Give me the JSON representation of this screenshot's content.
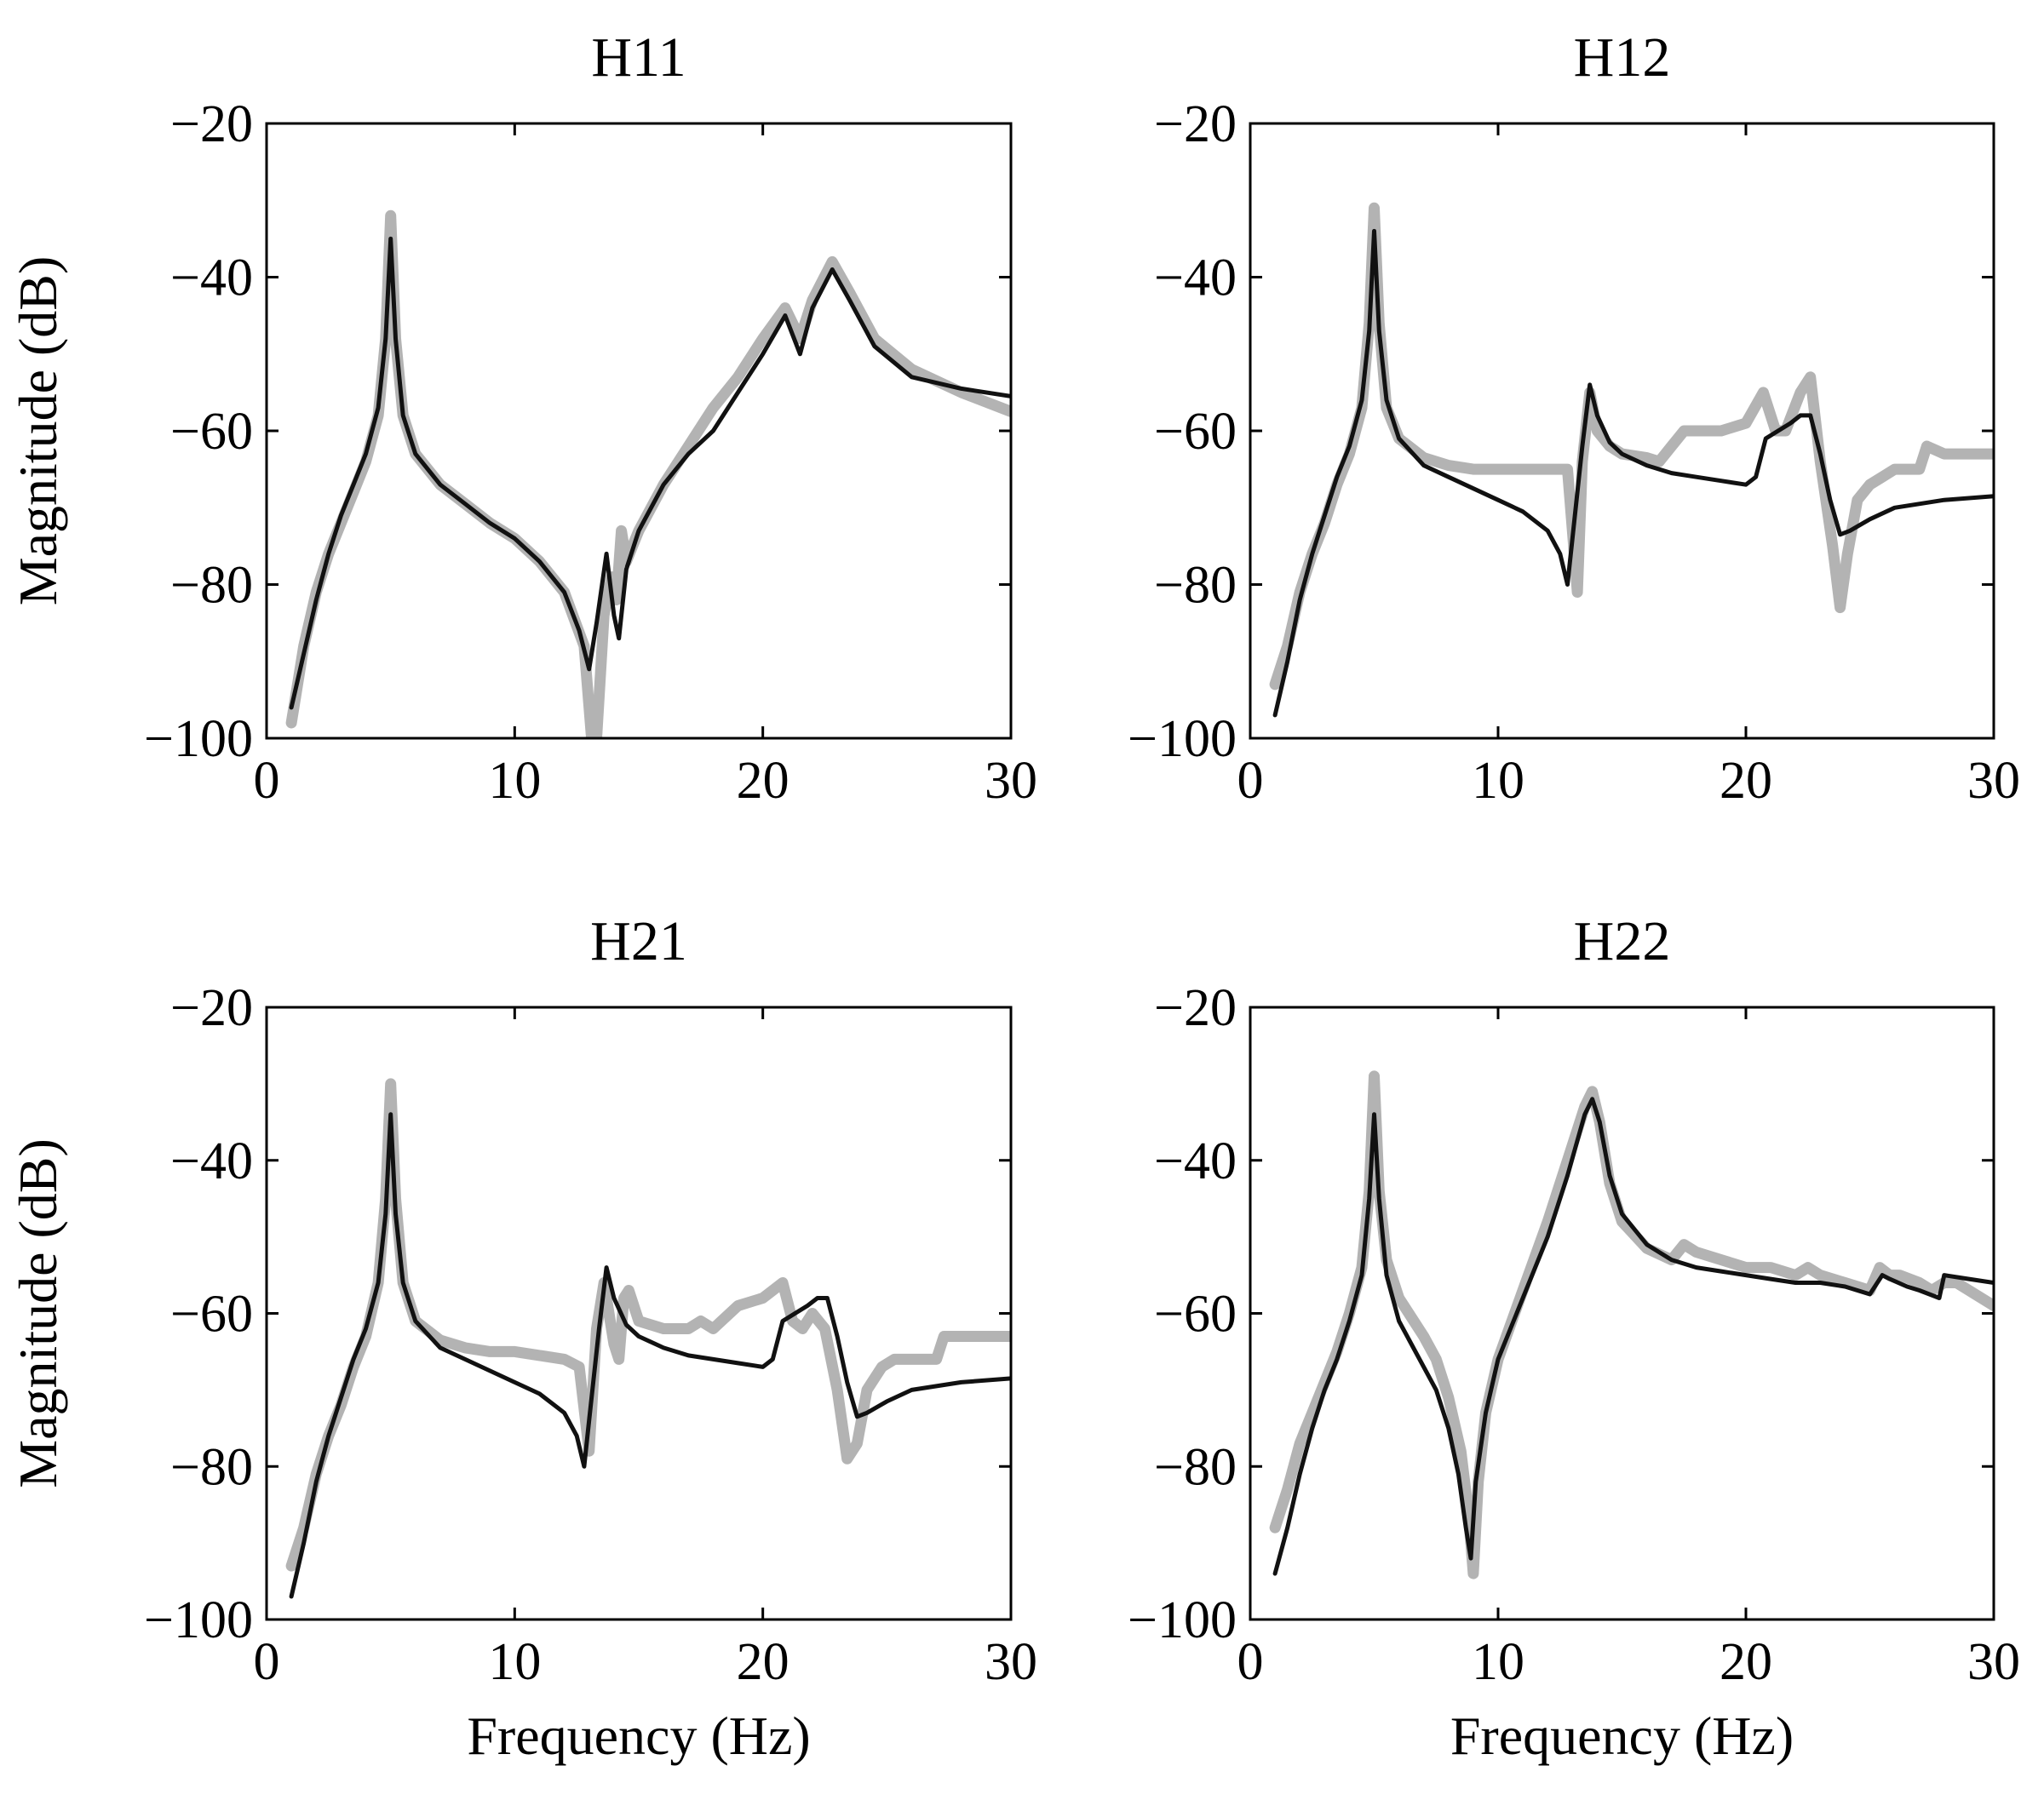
{
  "colors": {
    "measured": "#b3b3b3",
    "model": "#111111",
    "axes": "#000000",
    "background": "#ffffff"
  },
  "chart_data": [
    {
      "type": "line",
      "title": "H11",
      "xlabel": "",
      "ylabel": "Magnitude (dB)",
      "xlim": [
        0,
        30
      ],
      "ylim": [
        -100,
        -20
      ],
      "xticks": [
        0,
        10,
        20,
        30
      ],
      "yticks": [
        -100,
        -80,
        -60,
        -40,
        -20
      ],
      "xtick_labels": [
        "0",
        "10",
        "20",
        "30"
      ],
      "ytick_labels": [
        "−100",
        "−80",
        "−60",
        "−40",
        "−20"
      ],
      "grid": false,
      "series": [
        {
          "color": "#b3b3b3",
          "x": [
            1,
            1.5,
            2,
            2.5,
            3,
            3.5,
            4,
            4.5,
            4.8,
            5,
            5.2,
            5.5,
            6,
            7,
            8,
            9,
            10,
            11,
            12,
            12.8,
            13.1,
            13.3,
            13.6,
            13.9,
            14.1,
            14.3,
            14.5,
            15,
            16,
            17,
            18,
            19,
            20,
            20.9,
            21.5,
            22,
            22.8,
            23.5,
            24.5,
            26,
            28,
            30
          ],
          "y": [
            -98,
            -88,
            -81,
            -76,
            -72,
            -68,
            -64,
            -58,
            -48,
            -32,
            -48,
            -58,
            -63,
            -67,
            -69.5,
            -72,
            -74,
            -77,
            -81,
            -88,
            -100,
            -100,
            -84,
            -79,
            -82,
            -73,
            -77,
            -73,
            -67,
            -62,
            -57,
            -53,
            -48,
            -44,
            -48,
            -43,
            -38,
            -42,
            -48,
            -52,
            -55,
            -57.5
          ]
        },
        {
          "color": "#111111",
          "x": [
            1,
            1.5,
            2,
            2.5,
            3,
            3.5,
            4,
            4.5,
            4.8,
            5,
            5.2,
            5.5,
            6,
            7,
            8,
            9,
            10,
            11,
            12,
            12.6,
            13,
            13.3,
            13.7,
            14,
            14.2,
            14.5,
            15,
            16,
            17,
            18,
            19,
            20,
            20.9,
            21.5,
            22,
            22.8,
            23.5,
            24.5,
            26,
            28,
            30
          ],
          "y": [
            -96,
            -89,
            -82,
            -76,
            -71,
            -67,
            -63,
            -57,
            -48,
            -35,
            -48,
            -58,
            -63,
            -67,
            -69.5,
            -72,
            -74,
            -77,
            -81,
            -86,
            -91,
            -85,
            -76,
            -84,
            -87,
            -78,
            -73,
            -67,
            -63,
            -60,
            -55,
            -50,
            -45,
            -50,
            -44,
            -39,
            -43,
            -49,
            -53,
            -54.5,
            -55.5
          ]
        }
      ]
    },
    {
      "type": "line",
      "title": "H12",
      "xlabel": "",
      "ylabel": "",
      "xlim": [
        0,
        30
      ],
      "ylim": [
        -100,
        -20
      ],
      "xticks": [
        0,
        10,
        20,
        30
      ],
      "yticks": [
        -100,
        -80,
        -60,
        -40,
        -20
      ],
      "xtick_labels": [
        "0",
        "10",
        "20",
        "30"
      ],
      "ytick_labels": [
        "−100",
        "−80",
        "−60",
        "−40",
        "−20"
      ],
      "grid": false,
      "series": [
        {
          "color": "#b3b3b3",
          "x": [
            1,
            1.5,
            2,
            2.5,
            3,
            3.5,
            4,
            4.5,
            4.8,
            5,
            5.2,
            5.5,
            6,
            7,
            8,
            9,
            10,
            11,
            12,
            12.8,
            13.2,
            13.4,
            13.7,
            14,
            14.5,
            15,
            16,
            16.5,
            17,
            17.5,
            19,
            20,
            20.7,
            21.2,
            21.6,
            22.2,
            22.6,
            23,
            23.5,
            23.8,
            24.1,
            24.5,
            25,
            25.5,
            26,
            27,
            27.3,
            28,
            30
          ],
          "y": [
            -93,
            -88,
            -81,
            -76,
            -72,
            -67,
            -63,
            -57,
            -46,
            -31,
            -46,
            -57,
            -61,
            -63.5,
            -64.5,
            -65,
            -65,
            -65,
            -65,
            -65,
            -81,
            -64,
            -55,
            -60,
            -62,
            -63,
            -63.5,
            -64,
            -62,
            -60,
            -60,
            -59,
            -55,
            -60,
            -60,
            -55,
            -53,
            -64,
            -75,
            -83,
            -76,
            -69,
            -67,
            -66,
            -65,
            -65,
            -62,
            -63,
            -63
          ]
        },
        {
          "color": "#111111",
          "x": [
            1,
            1.5,
            2,
            2.5,
            3,
            3.5,
            4,
            4.5,
            4.8,
            5,
            5.2,
            5.5,
            6,
            7,
            8,
            9,
            10,
            11,
            12,
            12.5,
            12.8,
            13,
            13.4,
            13.7,
            14,
            14.5,
            15,
            16,
            17,
            18,
            19,
            20,
            20.4,
            20.8,
            21.3,
            21.8,
            22.2,
            22.6,
            23,
            23.4,
            23.8,
            24.2,
            25,
            26,
            28,
            30
          ],
          "y": [
            -97,
            -90,
            -82,
            -76,
            -71,
            -66,
            -62,
            -56,
            -47,
            -34,
            -47,
            -56,
            -61,
            -64.5,
            -66,
            -67.5,
            -69,
            -70.5,
            -73,
            -76,
            -80,
            -74,
            -62,
            -54,
            -58,
            -61.5,
            -63,
            -64.5,
            -65.5,
            -66,
            -66.5,
            -67,
            -66,
            -61,
            -60,
            -59,
            -58,
            -58,
            -63,
            -69,
            -73.5,
            -73,
            -71.5,
            -70,
            -69,
            -68.5
          ]
        }
      ]
    },
    {
      "type": "line",
      "title": "H21",
      "xlabel": "Frequency (Hz)",
      "ylabel": "Magnitude (dB)",
      "xlim": [
        0,
        30
      ],
      "ylim": [
        -100,
        -20
      ],
      "xticks": [
        0,
        10,
        20,
        30
      ],
      "yticks": [
        -100,
        -80,
        -60,
        -40,
        -20
      ],
      "xtick_labels": [
        "0",
        "10",
        "20",
        "30"
      ],
      "ytick_labels": [
        "−100",
        "−80",
        "−60",
        "−40",
        "−20"
      ],
      "grid": false,
      "series": [
        {
          "color": "#b3b3b3",
          "x": [
            1,
            1.5,
            2,
            2.5,
            3,
            3.5,
            4,
            4.5,
            4.8,
            5,
            5.2,
            5.5,
            6,
            7,
            8,
            9,
            10,
            11,
            12,
            12.6,
            13,
            13.3,
            13.6,
            14,
            14.2,
            14.4,
            14.6,
            15,
            16,
            17,
            17.5,
            18,
            19,
            20,
            20.8,
            21.2,
            21.6,
            22,
            22.5,
            23,
            23.4,
            23.8,
            24.2,
            24.8,
            25.3,
            26,
            27,
            27.3,
            28,
            30
          ],
          "y": [
            -93,
            -88,
            -81,
            -76,
            -72,
            -67,
            -63,
            -56,
            -45,
            -30,
            -45,
            -56,
            -61,
            -63.5,
            -64.5,
            -65,
            -65,
            -65.5,
            -66,
            -67,
            -78,
            -62,
            -56,
            -64,
            -66,
            -58,
            -57,
            -61,
            -62,
            -62,
            -61,
            -62,
            -59,
            -58,
            -56,
            -61,
            -62,
            -60,
            -62,
            -70,
            -79,
            -77,
            -70,
            -67,
            -66,
            -66,
            -66,
            -63,
            -63,
            -63
          ]
        },
        {
          "color": "#111111",
          "x": [
            1,
            1.5,
            2,
            2.5,
            3,
            3.5,
            4,
            4.5,
            4.8,
            5,
            5.2,
            5.5,
            6,
            7,
            8,
            9,
            10,
            11,
            12,
            12.5,
            12.8,
            13,
            13.4,
            13.7,
            14,
            14.5,
            15,
            16,
            17,
            18,
            19,
            20,
            20.4,
            20.8,
            21.3,
            21.8,
            22.2,
            22.6,
            23,
            23.4,
            23.8,
            24.2,
            25,
            26,
            28,
            30
          ],
          "y": [
            -97,
            -90,
            -82,
            -76,
            -71,
            -66,
            -62,
            -56,
            -47,
            -34,
            -47,
            -56,
            -61,
            -64.5,
            -66,
            -67.5,
            -69,
            -70.5,
            -73,
            -76,
            -80,
            -74,
            -62,
            -54,
            -58,
            -61.5,
            -63,
            -64.5,
            -65.5,
            -66,
            -66.5,
            -67,
            -66,
            -61,
            -60,
            -59,
            -58,
            -58,
            -63,
            -69,
            -73.5,
            -73,
            -71.5,
            -70,
            -69,
            -68.5
          ]
        }
      ]
    },
    {
      "type": "line",
      "title": "H22",
      "xlabel": "Frequency (Hz)",
      "ylabel": "",
      "xlim": [
        0,
        30
      ],
      "ylim": [
        -100,
        -20
      ],
      "xticks": [
        0,
        10,
        20,
        30
      ],
      "yticks": [
        -100,
        -80,
        -60,
        -40,
        -20
      ],
      "xtick_labels": [
        "0",
        "10",
        "20",
        "30"
      ],
      "ytick_labels": [
        "−100",
        "−80",
        "−60",
        "−40",
        "−20"
      ],
      "grid": false,
      "series": [
        {
          "color": "#b3b3b3",
          "x": [
            1,
            1.5,
            2,
            2.5,
            3,
            3.5,
            4,
            4.5,
            4.8,
            5,
            5.2,
            5.5,
            6,
            7,
            7.5,
            8,
            8.5,
            8.8,
            9,
            9.2,
            9.5,
            10,
            11,
            12,
            12.8,
            13.5,
            13.8,
            14.1,
            14.5,
            15,
            16,
            17,
            17.5,
            18,
            19,
            20,
            21,
            22,
            22.5,
            23,
            24,
            25,
            25.4,
            25.8,
            26.2,
            27,
            27.5,
            28,
            28.5,
            29,
            30
          ],
          "y": [
            -88,
            -83,
            -77,
            -73,
            -69,
            -65,
            -60,
            -54,
            -44,
            -29,
            -44,
            -53,
            -58,
            -63,
            -66,
            -71,
            -78,
            -86,
            -94,
            -82,
            -73,
            -66,
            -57,
            -48,
            -40,
            -33,
            -31,
            -35,
            -43,
            -48,
            -51.5,
            -53,
            -51,
            -52,
            -53,
            -54,
            -54,
            -55,
            -54,
            -55,
            -56,
            -57,
            -54,
            -55,
            -55,
            -56,
            -57,
            -56,
            -56,
            -57,
            -59
          ]
        },
        {
          "color": "#111111",
          "x": [
            1,
            1.5,
            2,
            2.5,
            3,
            3.5,
            4,
            4.5,
            4.8,
            5,
            5.2,
            5.5,
            6,
            7,
            7.5,
            8,
            8.4,
            8.7,
            8.9,
            9.1,
            9.5,
            10,
            11,
            12,
            12.8,
            13.5,
            13.8,
            14.1,
            14.5,
            15,
            16,
            17,
            18,
            19,
            20,
            21,
            22,
            23,
            24,
            25,
            25.5,
            25.8,
            26.5,
            27,
            27.8,
            28,
            29,
            30
          ],
          "y": [
            -94,
            -88,
            -81,
            -75,
            -70,
            -66,
            -61,
            -55,
            -45,
            -34,
            -45,
            -55,
            -61,
            -67,
            -70,
            -75,
            -81,
            -88,
            -92,
            -82,
            -73,
            -66,
            -58,
            -50,
            -42,
            -34,
            -32,
            -35,
            -42,
            -47,
            -51,
            -53,
            -54,
            -54.5,
            -55,
            -55.5,
            -56,
            -56,
            -56.5,
            -57.5,
            -55,
            -55.5,
            -56.5,
            -57,
            -58,
            -55,
            -55.5,
            -56
          ]
        }
      ]
    }
  ]
}
